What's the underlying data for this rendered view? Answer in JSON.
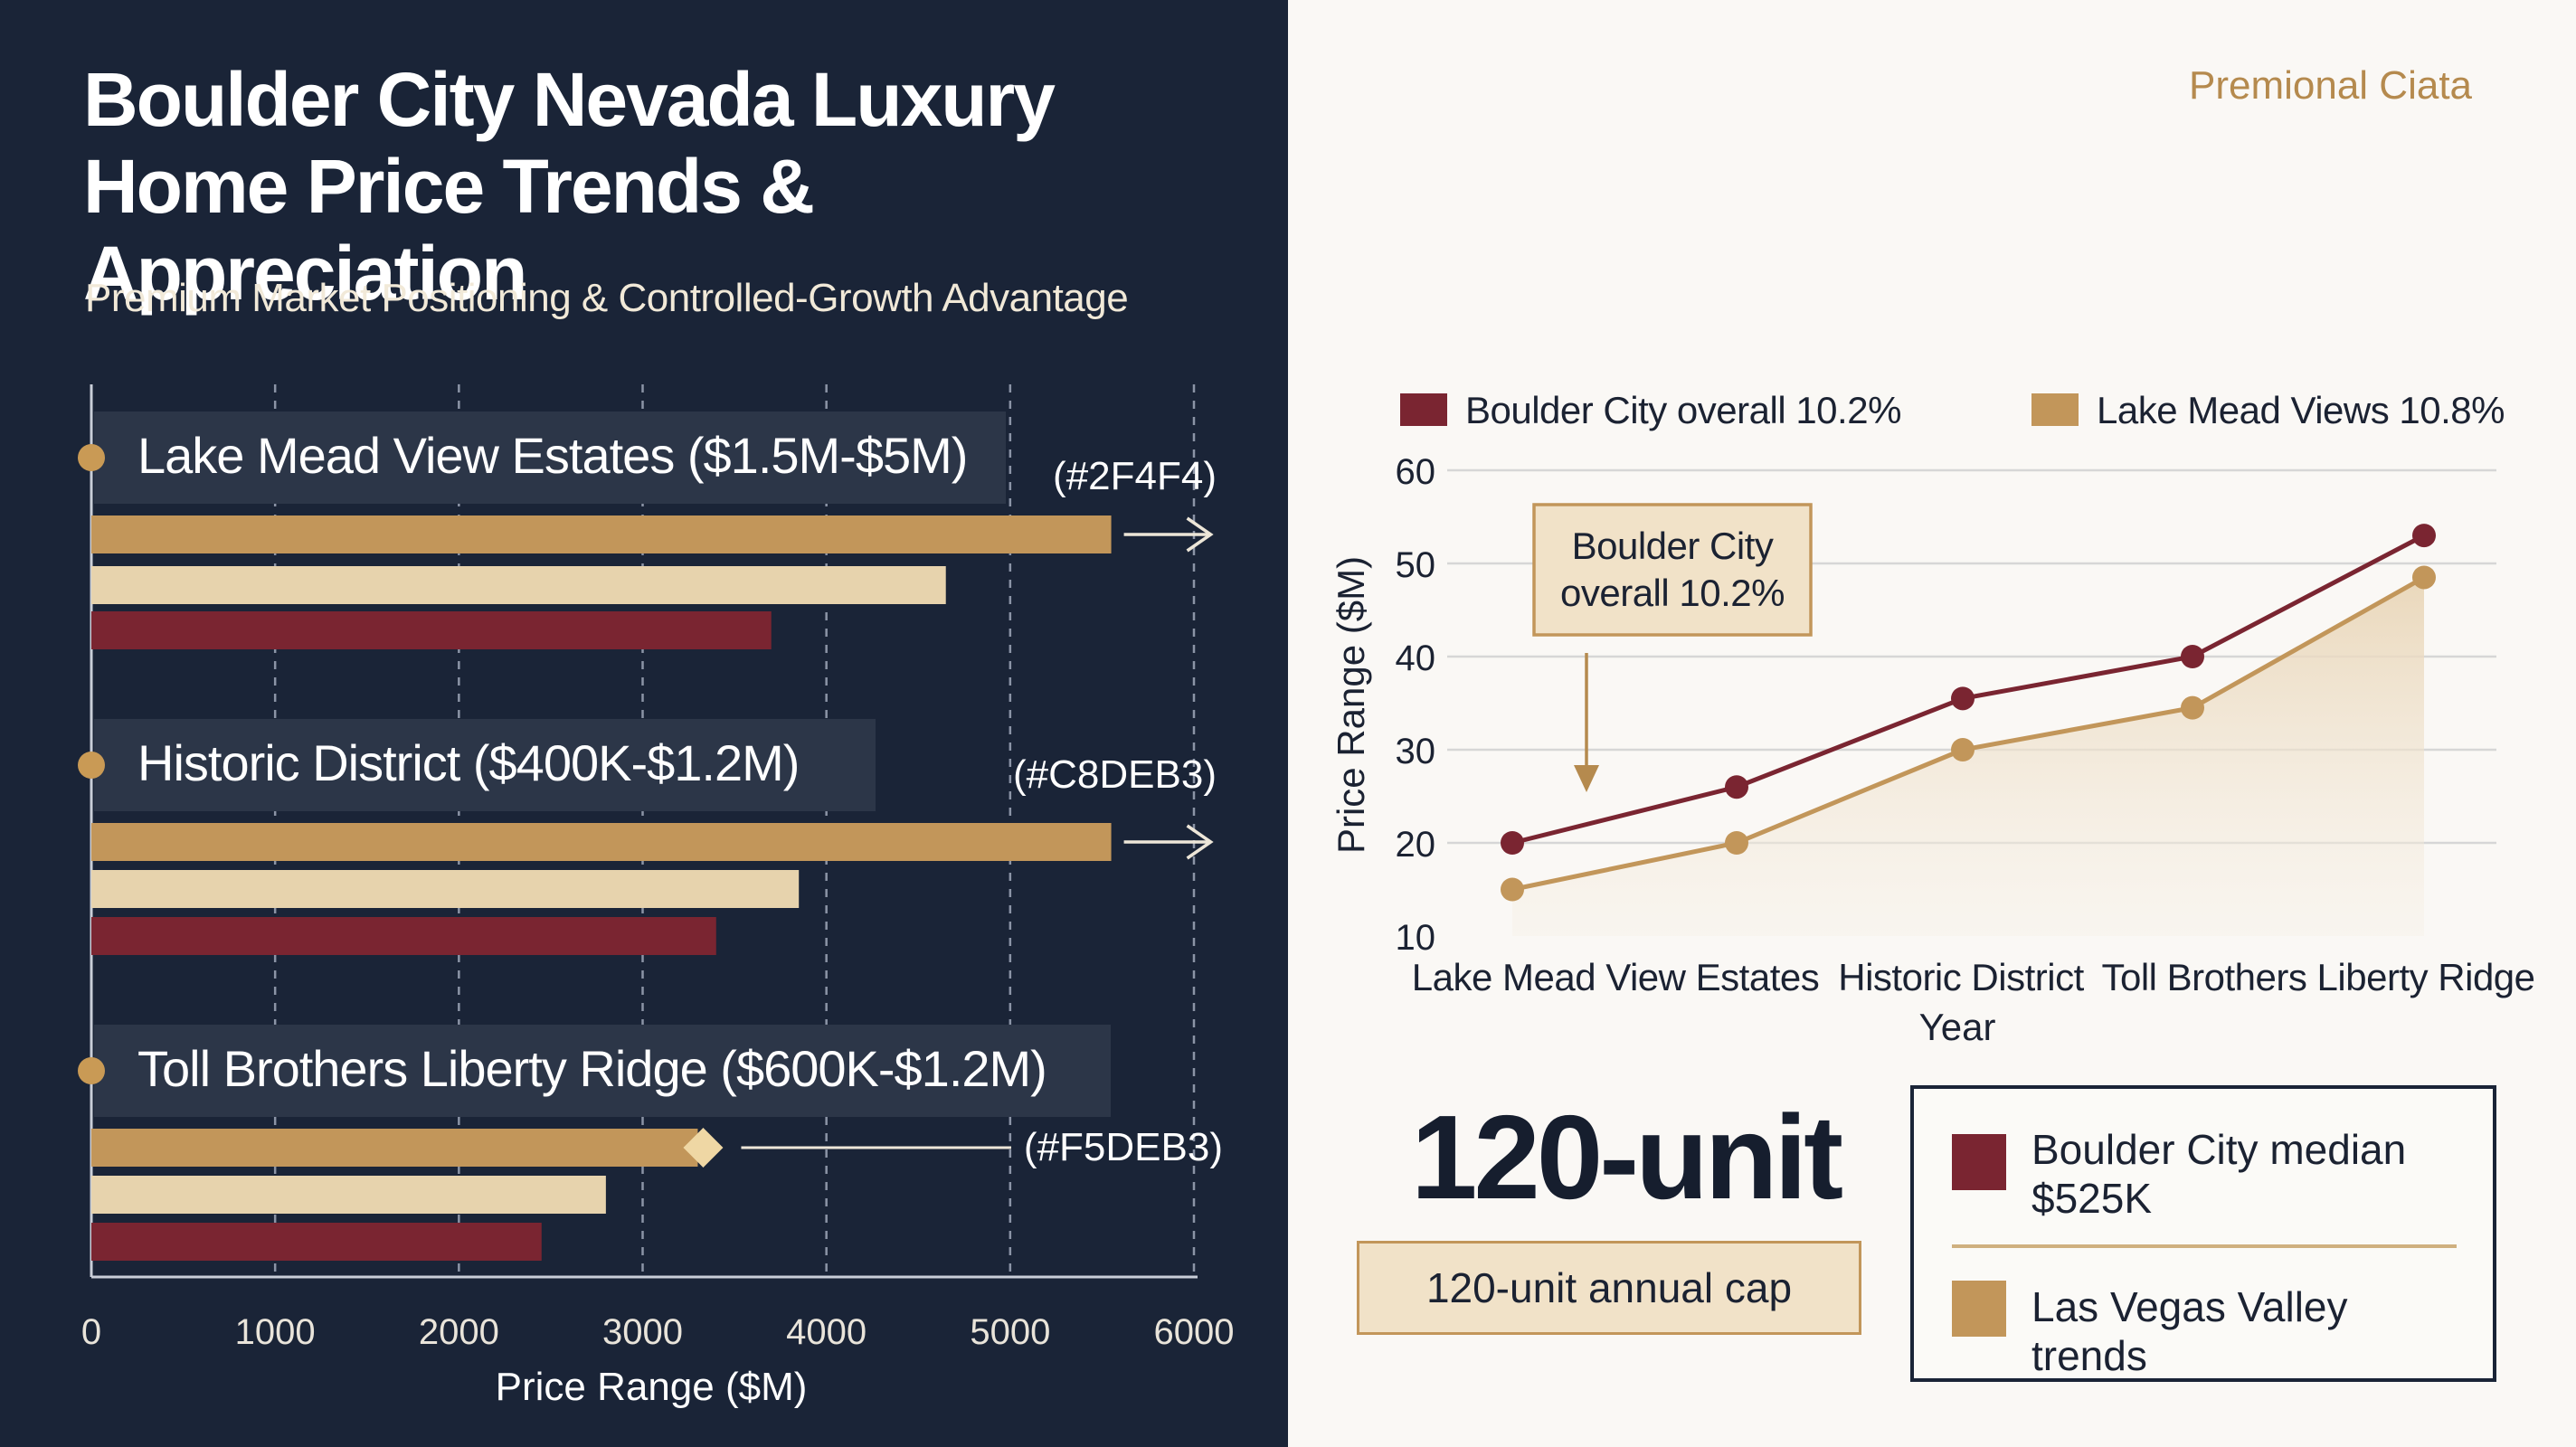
{
  "header": {
    "title": "Boulder City Nevada Luxury Home Price Trends & Appreciation",
    "subtitle": "Premium Market Positioning & Controlled-Growth Advantage",
    "brand": "Premional Ciata"
  },
  "colors": {
    "navy": "#1a2437",
    "gold": "#c2965a",
    "cream": "#e7d3ad",
    "maroon": "#7a2531",
    "background": "#faf8f5"
  },
  "chart_data": [
    {
      "type": "bar",
      "orientation": "horizontal",
      "xlabel": "Price Range ($M)",
      "xlim": [
        0,
        6000
      ],
      "xticks": [
        "0",
        "1000",
        "2000",
        "3000",
        "4000",
        "5000",
        "6000"
      ],
      "grid": "vertical dashed",
      "groups": [
        {
          "label": "Lake Mead View Estates ($1.5M-$5M)",
          "tag": "(#2F4F4)",
          "values": [
            5550,
            4650,
            3700
          ],
          "marker": "arrow"
        },
        {
          "label": "Historic District ($400K-$1.2M)",
          "tag": "(#C8DEB3)",
          "values": [
            5550,
            3850,
            3400
          ],
          "marker": "arrow"
        },
        {
          "label": "Toll Brothers Liberty Ridge ($600K-$1.2M)",
          "tag": "(#F5DEB3)",
          "values": [
            3300,
            2800,
            2450
          ],
          "marker": "diamond"
        }
      ]
    },
    {
      "type": "line",
      "ylabel": "Price Range ($M)",
      "xlabel": "Year",
      "ylim": [
        10,
        60
      ],
      "yticks": [
        "10",
        "20",
        "30",
        "40",
        "50",
        "60"
      ],
      "categories": [
        "Lake Mead View Estates",
        "Historic District",
        "Toll Brothers Liberty Ridge"
      ],
      "grid": "horizontal",
      "legend": "top",
      "series": [
        {
          "name": "Boulder City overall 10.2%",
          "color": "#7a2531",
          "x": [
            0,
            1,
            2,
            3,
            4
          ],
          "values": [
            20,
            26,
            35.5,
            40,
            53
          ]
        },
        {
          "name": "Lake Mead Views 10.8%",
          "color": "#c2965a",
          "x": [
            0,
            1,
            2,
            3,
            4
          ],
          "values": [
            15,
            20,
            30,
            34.5,
            48.5
          ]
        }
      ],
      "annotation": "Boulder City overall 10.2%"
    }
  ],
  "stats": {
    "big_number": "120-unit",
    "cap_label": "120-unit annual cap"
  },
  "legend_box": {
    "items": [
      {
        "label": "Boulder City median $525K",
        "color": "#7a2531"
      },
      {
        "label": "Las Vegas Valley trends",
        "color": "#c2965a"
      }
    ]
  }
}
